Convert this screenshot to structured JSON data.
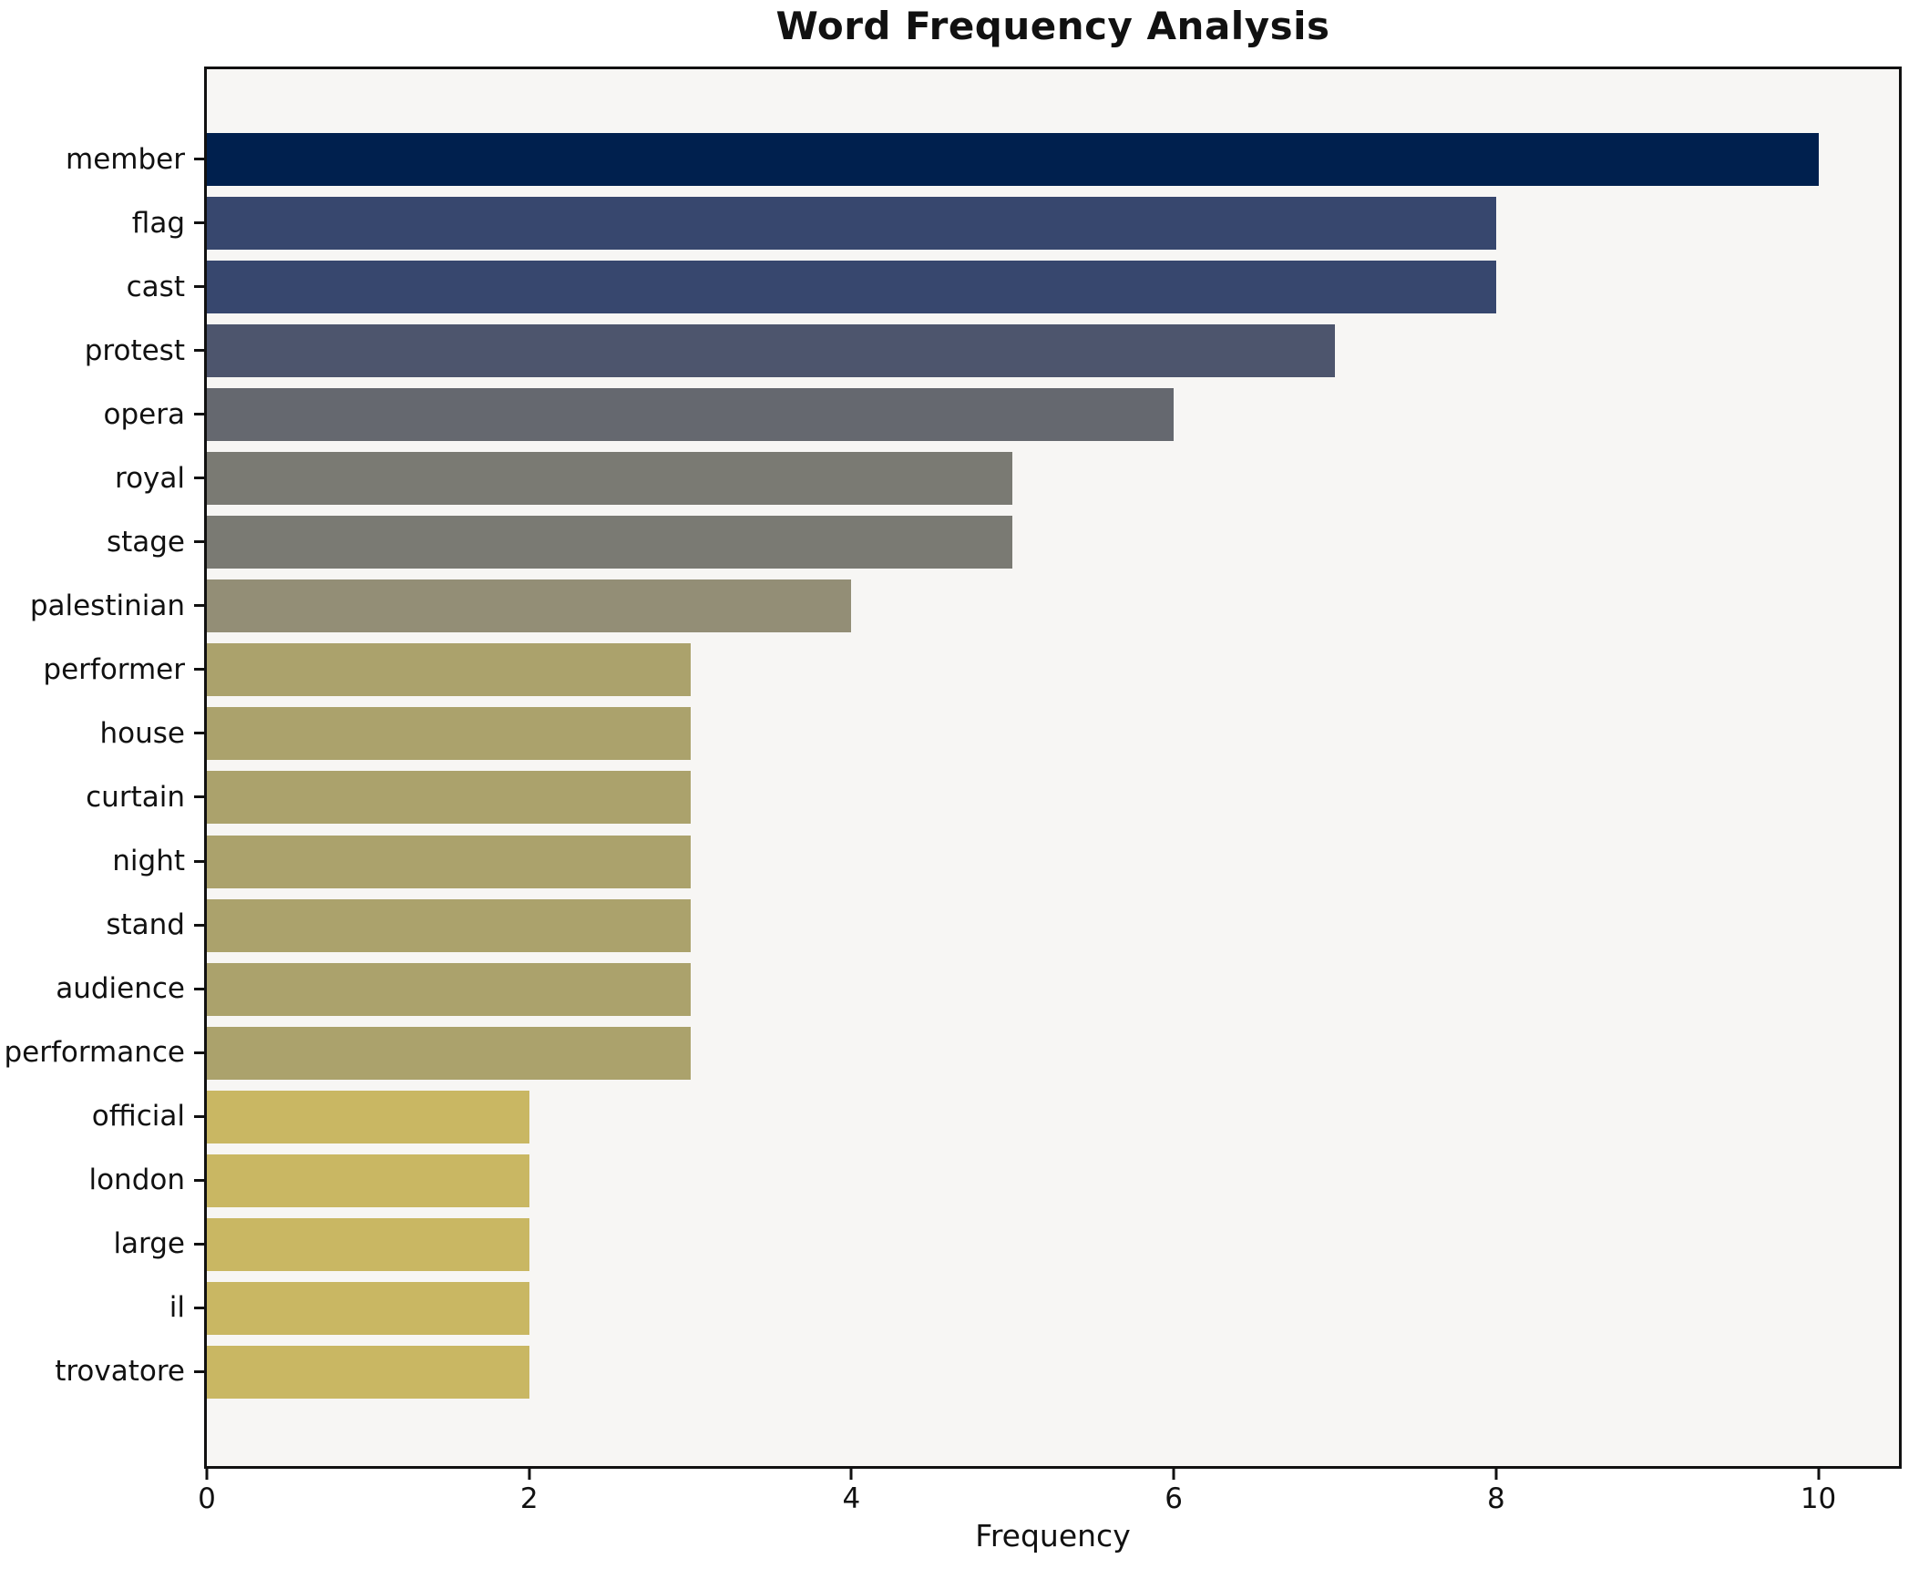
{
  "chart_data": {
    "type": "bar",
    "orientation": "horizontal",
    "title": "Word Frequency Analysis",
    "xlabel": "Frequency",
    "ylabel": "",
    "categories": [
      "member",
      "flag",
      "cast",
      "protest",
      "opera",
      "royal",
      "stage",
      "palestinian",
      "performer",
      "house",
      "curtain",
      "night",
      "stand",
      "audience",
      "performance",
      "official",
      "london",
      "large",
      "il",
      "trovatore"
    ],
    "values": [
      10,
      8,
      8,
      7,
      6,
      5,
      5,
      4,
      3,
      3,
      3,
      3,
      3,
      3,
      3,
      2,
      2,
      2,
      2,
      2
    ],
    "bar_colors": [
      "#00204e",
      "#37476e",
      "#37476e",
      "#4d556d",
      "#65686f",
      "#7a7a73",
      "#7a7a73",
      "#938e76",
      "#aba26c",
      "#aba26c",
      "#aba26c",
      "#aba26c",
      "#aba26c",
      "#aba26c",
      "#aba26c",
      "#c9b763",
      "#c9b763",
      "#c9b763",
      "#c9b763",
      "#c9b763"
    ],
    "xlim": [
      0,
      10.5
    ],
    "xticks": [
      0,
      2,
      4,
      6,
      8,
      10
    ],
    "grid": false,
    "legend": null,
    "colormap": "cividis",
    "plot_background": "#f7f6f4",
    "axis_color": "#111111"
  }
}
